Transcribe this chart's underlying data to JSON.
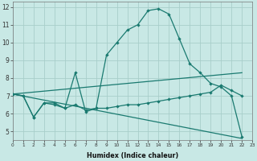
{
  "xlabel": "Humidex (Indice chaleur)",
  "bg_color": "#c8e8e5",
  "grid_color": "#a8ceca",
  "line_color": "#1a7a70",
  "xlim": [
    0,
    23
  ],
  "ylim": [
    4.5,
    12.3
  ],
  "xticks": [
    0,
    1,
    2,
    3,
    4,
    5,
    6,
    7,
    8,
    9,
    10,
    11,
    12,
    13,
    14,
    15,
    16,
    17,
    18,
    19,
    20,
    21,
    22,
    23
  ],
  "yticks": [
    5,
    6,
    7,
    8,
    9,
    10,
    11,
    12
  ],
  "line1_x": [
    0,
    1,
    2,
    3,
    4,
    5,
    6,
    7,
    8,
    9,
    10,
    11,
    12,
    13,
    14,
    15,
    16,
    17,
    18,
    19,
    20,
    21,
    22
  ],
  "line1_y": [
    7.1,
    7.0,
    5.8,
    6.6,
    6.6,
    6.3,
    8.3,
    6.1,
    6.3,
    9.3,
    10.0,
    10.7,
    11.0,
    11.8,
    11.9,
    11.6,
    10.2,
    8.8,
    8.3,
    7.7,
    7.5,
    7.0,
    4.7
  ],
  "line2_x": [
    0,
    1,
    2,
    3,
    4,
    5,
    6,
    7,
    8,
    9,
    10,
    11,
    12,
    13,
    14,
    15,
    16,
    17,
    18,
    19,
    20,
    21,
    22
  ],
  "line2_y": [
    7.1,
    7.0,
    5.8,
    6.6,
    6.5,
    6.3,
    6.5,
    6.2,
    6.3,
    6.3,
    6.4,
    6.5,
    6.5,
    6.6,
    6.7,
    6.8,
    6.9,
    7.0,
    7.1,
    7.2,
    7.6,
    7.3,
    7.0
  ],
  "line3_x": [
    0,
    22
  ],
  "line3_y": [
    7.1,
    8.3
  ],
  "line4_x": [
    0,
    22
  ],
  "line4_y": [
    7.1,
    4.6
  ],
  "xticklabels_fontsize": 4.2,
  "yticklabels_fontsize": 5.5,
  "xlabel_fontsize": 5.8
}
